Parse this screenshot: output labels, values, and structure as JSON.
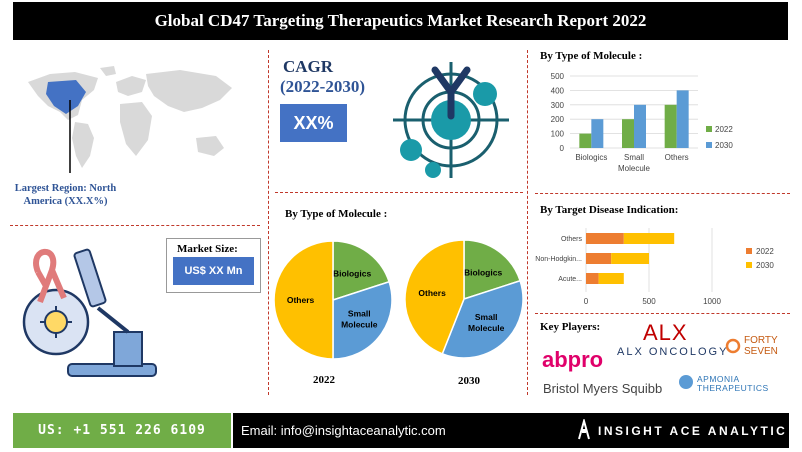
{
  "header": {
    "title": "Global CD47 Targeting Therapeutics Market Research Report 2022"
  },
  "region": {
    "label": "Largest Region: North America   (XX.X%)"
  },
  "market_size": {
    "label": "Market Size:",
    "value": "US$ XX Mn"
  },
  "cagr": {
    "label": "CAGR",
    "period": "(2022-2030)",
    "value": "XX%"
  },
  "pies_section": {
    "title": "By Type of Molecule :",
    "year_left": "2022",
    "year_right": "2030"
  },
  "colors": {
    "orange": "#ed7d31",
    "yellow": "#ffc000",
    "green": "#70ad47",
    "blue": "#4472c4",
    "teal": "#1a7a8c"
  },
  "key_players": {
    "title": "Key Players:",
    "logos": [
      "ALX ONCOLOGY",
      "FORTY SEVEN",
      "abpro",
      "Bristol Myers Squibb",
      "APMONIA THERAPEUTICS"
    ]
  },
  "footer": {
    "phone": "US: +1 551 226 6109",
    "email": "Email: info@insightaceanalytic.com",
    "brand": "INSIGHT ACE ANALYTIC"
  },
  "chart_data": [
    {
      "type": "bar",
      "title": "By Type of Molecule :",
      "categories": [
        "Biologics",
        "Small Molecule",
        "Others"
      ],
      "series": [
        {
          "name": "2022",
          "values": [
            100,
            200,
            300
          ],
          "color": "#70ad47"
        },
        {
          "name": "2030",
          "values": [
            200,
            300,
            400
          ],
          "color": "#5b9bd5"
        }
      ],
      "ylim": [
        0,
        500
      ],
      "yticks": [
        0,
        100,
        200,
        300,
        400,
        500
      ],
      "grid": true,
      "legend": "right"
    },
    {
      "type": "bar",
      "orientation": "horizontal",
      "title": "By Target Disease Indication:",
      "categories": [
        "Others",
        "Non-Hodgkin...",
        "Acute..."
      ],
      "series": [
        {
          "name": "2022",
          "values": [
            300,
            200,
            100
          ],
          "color": "#ed7d31"
        },
        {
          "name": "2030",
          "values": [
            400,
            300,
            200
          ],
          "color": "#ffc000"
        }
      ],
      "xlim": [
        0,
        1000
      ],
      "xticks": [
        0,
        500,
        1000
      ],
      "grid": true,
      "legend": "right"
    },
    {
      "type": "pie",
      "title": "2022",
      "slices": [
        {
          "label": "Biologics",
          "value": 20,
          "color": "#70ad47"
        },
        {
          "label": "Small Molecule",
          "value": 30,
          "color": "#5b9bd5"
        },
        {
          "label": "Others",
          "value": 50,
          "color": "#ffc000"
        }
      ]
    },
    {
      "type": "pie",
      "title": "2030",
      "slices": [
        {
          "label": "Biologics",
          "value": 20,
          "color": "#70ad47"
        },
        {
          "label": "Small Molecule",
          "value": 36,
          "color": "#5b9bd5"
        },
        {
          "label": "Others",
          "value": 44,
          "color": "#ffc000"
        }
      ]
    }
  ]
}
